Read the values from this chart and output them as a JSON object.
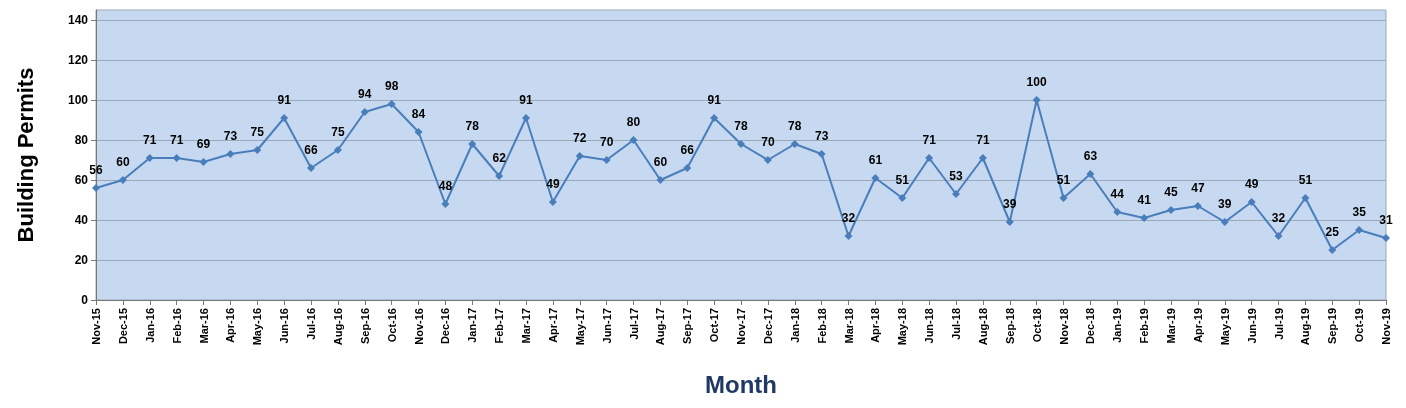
{
  "chart_data": {
    "type": "line",
    "xlabel": "Month",
    "ylabel": "Building Permits",
    "categories": [
      "Nov-15",
      "Dec-15",
      "Jan-16",
      "Feb-16",
      "Mar-16",
      "Apr-16",
      "May-16",
      "Jun-16",
      "Jul-16",
      "Aug-16",
      "Sep-16",
      "Oct-16",
      "Nov-16",
      "Dec-16",
      "Jan-17",
      "Feb-17",
      "Mar-17",
      "Apr-17",
      "May-17",
      "Jun-17",
      "Jul-17",
      "Aug-17",
      "Sep-17",
      "Oct-17",
      "Nov-17",
      "Dec-17",
      "Jan-18",
      "Feb-18",
      "Mar-18",
      "Apr-18",
      "May-18",
      "Jun-18",
      "Jul-18",
      "Aug-18",
      "Sep-18",
      "Oct-18",
      "Nov-18",
      "Dec-18",
      "Jan-19",
      "Feb-19",
      "Mar-19",
      "Apr-19",
      "May-19",
      "Jun-19",
      "Jul-19",
      "Aug-19",
      "Sep-19",
      "Oct-19",
      "Nov-19"
    ],
    "series": [
      {
        "color": "#4a7ebb",
        "values": [
          56,
          60,
          71,
          71,
          69,
          73,
          75,
          91,
          66,
          75,
          94,
          98,
          84,
          48,
          78,
          62,
          91,
          49,
          72,
          70,
          80,
          60,
          66,
          91,
          78,
          70,
          78,
          73,
          32,
          61,
          51,
          71,
          53,
          71,
          39,
          100,
          51,
          63,
          44,
          41,
          45,
          47,
          39,
          49,
          32,
          51,
          25,
          35,
          31
        ]
      }
    ],
    "ylim": [
      0,
      145
    ],
    "yticks": [
      0,
      20,
      40,
      60,
      80,
      100,
      120,
      140
    ],
    "grid": "y",
    "marker": "diamond",
    "line_style": "solid",
    "data_labels": true
  }
}
